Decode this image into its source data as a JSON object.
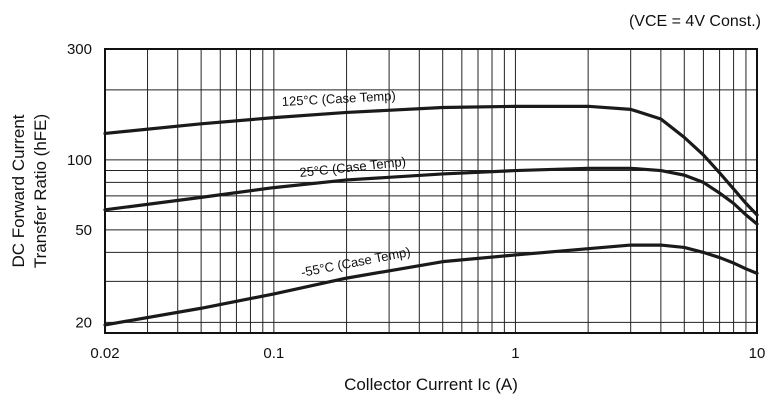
{
  "chart_data": {
    "type": "line",
    "xlabel": "Collector Current Ic (A)",
    "ylabel_line1": "DC Forward Current",
    "ylabel_line2": "Transfer Ratio (hFE)",
    "condition": "(VCE = 4V Const.)",
    "x_scale": "log",
    "y_scale": "log",
    "xlim": [
      0.02,
      10
    ],
    "ylim": [
      18,
      300
    ],
    "x_ticks": [
      {
        "value": 0.02,
        "label": "0.02"
      },
      {
        "value": 0.1,
        "label": "0.1"
      },
      {
        "value": 1,
        "label": "1"
      },
      {
        "value": 10,
        "label": "10"
      }
    ],
    "y_ticks": [
      {
        "value": 20,
        "label": "20"
      },
      {
        "value": 50,
        "label": "50"
      },
      {
        "value": 100,
        "label": "100"
      },
      {
        "value": 300,
        "label": "300"
      }
    ],
    "grid": true,
    "series": [
      {
        "name": "125°C (Case Temp)",
        "x": [
          0.02,
          0.05,
          0.1,
          0.2,
          0.5,
          1,
          2,
          3,
          4,
          5,
          6,
          7,
          8,
          9,
          10
        ],
        "y": [
          130,
          143,
          152,
          160,
          168,
          170,
          170,
          165,
          150,
          125,
          105,
          88,
          75,
          65,
          58
        ]
      },
      {
        "name": "25°C (Case Temp)",
        "x": [
          0.02,
          0.05,
          0.1,
          0.2,
          0.5,
          1,
          2,
          3,
          4,
          5,
          6,
          7,
          8,
          9,
          10
        ],
        "y": [
          61,
          69,
          76,
          82,
          87,
          90,
          92,
          92,
          90,
          86,
          80,
          72,
          65,
          58,
          53
        ]
      },
      {
        "name": "-55°C (Case Temp)",
        "x": [
          0.02,
          0.05,
          0.1,
          0.2,
          0.5,
          1,
          2,
          3,
          4,
          5,
          6,
          7,
          8,
          9,
          10
        ],
        "y": [
          19.5,
          23,
          26.5,
          31,
          36.5,
          39,
          41.5,
          43,
          43,
          42,
          40,
          38,
          36,
          34,
          32.5
        ]
      }
    ]
  }
}
